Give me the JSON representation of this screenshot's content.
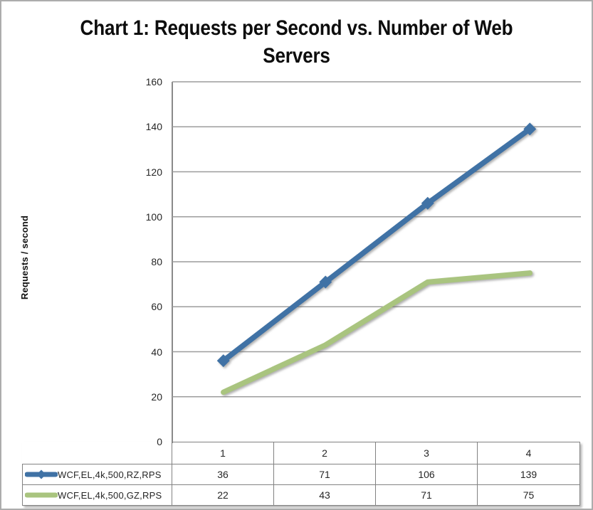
{
  "chart": {
    "title_lines": [
      "Chart 1: Requests per Second vs. Number of Web",
      "Servers"
    ]
  },
  "chart_data": {
    "type": "line",
    "title": "Chart 1: Requests per Second vs. Number of Web Servers",
    "xlabel": "",
    "ylabel": "Requests / second",
    "categories": [
      "1",
      "2",
      "3",
      "4"
    ],
    "series": [
      {
        "name": "WCF,EL,4k,500,RZ,RPS",
        "values": [
          36,
          71,
          106,
          139
        ],
        "color": "#4072A5",
        "marker": "diamond"
      },
      {
        "name": "WCF,EL,4k,500,GZ,RPS",
        "values": [
          22,
          43,
          71,
          75
        ],
        "color": "#A9C47F",
        "marker": "none"
      }
    ],
    "ylim": [
      0,
      160
    ],
    "yticks": [
      0,
      20,
      40,
      60,
      80,
      100,
      120,
      140,
      160
    ],
    "grid": true,
    "legend_position": "data-table-left",
    "data_table_shown": true,
    "colors": {
      "series_1": "#4072A5",
      "series_2": "#A9C47F",
      "gridline": "#9C9C9C",
      "axis": "#8A8A8A",
      "table_border": "#828282",
      "text": "#262626",
      "title_text": "#0d0d0d",
      "background": "#FFFFFF"
    }
  }
}
